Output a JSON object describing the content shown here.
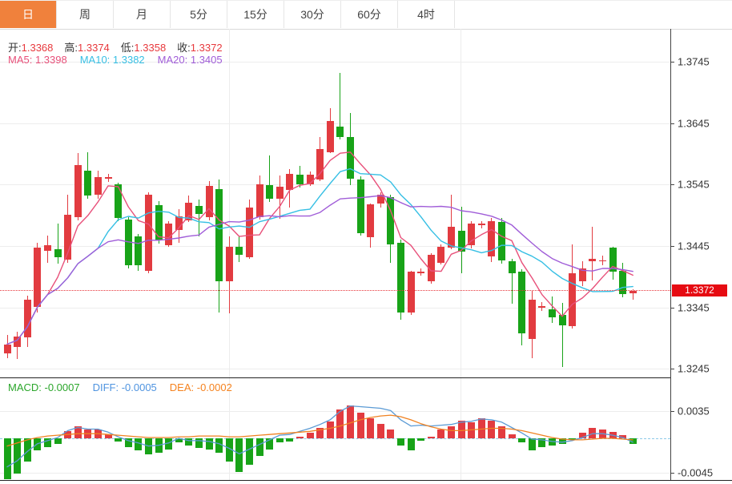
{
  "toolbar": {
    "tabs": [
      {
        "label": "日",
        "active": true
      },
      {
        "label": "周",
        "active": false
      },
      {
        "label": "月",
        "active": false
      },
      {
        "label": "5分",
        "active": false
      },
      {
        "label": "15分",
        "active": false
      },
      {
        "label": "30分",
        "active": false
      },
      {
        "label": "60分",
        "active": false
      },
      {
        "label": "4时",
        "active": false
      }
    ]
  },
  "ohlc": {
    "open_label": "开:",
    "open": "1.3368",
    "high_label": "高:",
    "high": "1.3374",
    "low_label": "低:",
    "low": "1.3358",
    "close_label": "收:",
    "close": "1.3372"
  },
  "ma": {
    "ma5": "MA5: 1.3398",
    "ma10": "MA10: 1.3382",
    "ma20": "MA20: 1.3405"
  },
  "macd_header": {
    "macd": "MACD: -0.0007",
    "diff": "DIFF: -0.0005",
    "dea": "DEA: -0.0002"
  },
  "price_axis": {
    "ticks": [
      "1.3745",
      "1.3645",
      "1.3545",
      "1.3445",
      "1.3345",
      "1.3245"
    ],
    "current": "1.3372"
  },
  "macd_axis": {
    "ticks": [
      "0.0035",
      "-0.0045"
    ]
  },
  "colors": {
    "up": "#e23b40",
    "down": "#18a318",
    "tab_active": "#f0813c",
    "ma5": "#e8507a",
    "ma10": "#36bfe4",
    "ma20": "#a05dd8",
    "diff_line": "#5b9bd5",
    "dea_line": "#f08222",
    "price_line": "#e8353a",
    "badge": "#e60b12"
  },
  "chart_data": {
    "type": "candlestick",
    "title": "日K线 (daily candlestick with MA5/MA10/MA20 and MACD)",
    "price_axis_ticks": [
      1.3745,
      1.3645,
      1.3545,
      1.3445,
      1.3345,
      1.3245
    ],
    "price_range": [
      1.3225,
      1.376
    ],
    "current_price": 1.3372,
    "macd_axis_ticks": [
      0.0035,
      -0.0045
    ],
    "legend": [
      "MA5",
      "MA10",
      "MA20",
      "MACD",
      "DIFF",
      "DEA"
    ],
    "grid": true,
    "candles_ohlc": [
      [
        1.327,
        1.33,
        1.3262,
        1.3285
      ],
      [
        1.3281,
        1.3305,
        1.3261,
        1.3298
      ],
      [
        1.3296,
        1.3364,
        1.3281,
        1.3357
      ],
      [
        1.3346,
        1.345,
        1.3337,
        1.3442
      ],
      [
        1.3437,
        1.3462,
        1.3418,
        1.3446
      ],
      [
        1.344,
        1.3481,
        1.3416,
        1.3427
      ],
      [
        1.3422,
        1.3529,
        1.3418,
        1.3496
      ],
      [
        1.3492,
        1.3596,
        1.3487,
        1.3577
      ],
      [
        1.3568,
        1.3598,
        1.3522,
        1.3527
      ],
      [
        1.3529,
        1.3568,
        1.3522,
        1.3557
      ],
      [
        1.3556,
        1.3563,
        1.3549,
        1.3557
      ],
      [
        1.3545,
        1.3548,
        1.3486,
        1.349
      ],
      [
        1.3488,
        1.3492,
        1.3408,
        1.3413
      ],
      [
        1.3461,
        1.3465,
        1.3405,
        1.3414
      ],
      [
        1.3405,
        1.3532,
        1.34,
        1.3529
      ],
      [
        1.3511,
        1.3518,
        1.3449,
        1.3454
      ],
      [
        1.3446,
        1.3486,
        1.3444,
        1.3481
      ],
      [
        1.3471,
        1.3505,
        1.345,
        1.3493
      ],
      [
        1.3487,
        1.3527,
        1.3484,
        1.3515
      ],
      [
        1.351,
        1.352,
        1.3461,
        1.3497
      ],
      [
        1.3492,
        1.3551,
        1.3486,
        1.3543
      ],
      [
        1.3537,
        1.3553,
        1.3337,
        1.3388
      ],
      [
        1.3388,
        1.3461,
        1.3335,
        1.3444
      ],
      [
        1.3443,
        1.3461,
        1.3419,
        1.343
      ],
      [
        1.3427,
        1.352,
        1.3424,
        1.3507
      ],
      [
        1.3492,
        1.356,
        1.3488,
        1.3546
      ],
      [
        1.3544,
        1.3592,
        1.3517,
        1.3522
      ],
      [
        1.3522,
        1.356,
        1.3489,
        1.3541
      ],
      [
        1.3536,
        1.357,
        1.3508,
        1.3563
      ],
      [
        1.3561,
        1.3575,
        1.354,
        1.3546
      ],
      [
        1.3546,
        1.3566,
        1.3543,
        1.3561
      ],
      [
        1.3553,
        1.3622,
        1.355,
        1.3603
      ],
      [
        1.3598,
        1.367,
        1.3596,
        1.3648
      ],
      [
        1.364,
        1.3727,
        1.3619,
        1.3622
      ],
      [
        1.3622,
        1.3661,
        1.3544,
        1.3555
      ],
      [
        1.3553,
        1.3558,
        1.3462,
        1.3466
      ],
      [
        1.3459,
        1.3514,
        1.3442,
        1.3513
      ],
      [
        1.3514,
        1.3533,
        1.3508,
        1.3529
      ],
      [
        1.3524,
        1.3528,
        1.3418,
        1.3448
      ],
      [
        1.345,
        1.3455,
        1.3325,
        1.3337
      ],
      [
        1.3337,
        1.3405,
        1.3333,
        1.3403
      ],
      [
        1.3401,
        1.3408,
        1.3396,
        1.3403
      ],
      [
        1.3387,
        1.3433,
        1.3384,
        1.3431
      ],
      [
        1.3418,
        1.3447,
        1.3415,
        1.3444
      ],
      [
        1.3442,
        1.3529,
        1.344,
        1.3476
      ],
      [
        1.347,
        1.3509,
        1.34,
        1.3435
      ],
      [
        1.3446,
        1.3485,
        1.3441,
        1.3481
      ],
      [
        1.348,
        1.3486,
        1.3474,
        1.3481
      ],
      [
        1.3428,
        1.3491,
        1.3418,
        1.3485
      ],
      [
        1.3484,
        1.3491,
        1.3416,
        1.3421
      ],
      [
        1.342,
        1.3424,
        1.3351,
        1.34
      ],
      [
        1.3403,
        1.3407,
        1.3283,
        1.3302
      ],
      [
        1.3294,
        1.3372,
        1.3262,
        1.3358
      ],
      [
        1.3346,
        1.3353,
        1.3339,
        1.3347
      ],
      [
        1.3342,
        1.3363,
        1.332,
        1.3329
      ],
      [
        1.3333,
        1.3352,
        1.3248,
        1.3316
      ],
      [
        1.3314,
        1.3447,
        1.331,
        1.34
      ],
      [
        1.3387,
        1.342,
        1.338,
        1.3409
      ],
      [
        1.342,
        1.3476,
        1.3389,
        1.3424
      ],
      [
        1.3421,
        1.3429,
        1.3413,
        1.3422
      ],
      [
        1.3442,
        1.3444,
        1.339,
        1.3403
      ],
      [
        1.3405,
        1.3418,
        1.3361,
        1.3366
      ],
      [
        1.3368,
        1.3374,
        1.3358,
        1.3372
      ]
    ],
    "macd_hist": [
      -0.0053,
      -0.0046,
      -0.003,
      -0.0016,
      -0.0011,
      -0.0007,
      0.0009,
      0.0016,
      0.0012,
      0.0011,
      0.0005,
      -0.0004,
      -0.0011,
      -0.0016,
      -0.0021,
      -0.0019,
      -0.0014,
      -0.0005,
      -0.0009,
      -0.0012,
      -0.0014,
      -0.0019,
      -0.003,
      -0.0044,
      -0.0034,
      -0.0023,
      -0.0014,
      -0.0005,
      -0.0004,
      0.0002,
      0.0007,
      0.0014,
      0.0022,
      0.0037,
      0.0043,
      0.0033,
      0.0026,
      0.0019,
      0.0012,
      -0.0009,
      -0.0016,
      -0.0003,
      0.0002,
      0.0011,
      0.0016,
      0.0023,
      0.0021,
      0.0026,
      0.0023,
      0.0016,
      0.0005,
      -0.0005,
      -0.0016,
      -0.0011,
      -0.0009,
      -0.0007,
      -0.0002,
      0.0007,
      0.0014,
      0.0012,
      0.0008,
      0.0004,
      -0.0007
    ],
    "diff_series": [
      -0.0037,
      -0.0029,
      -0.0017,
      -0.0007,
      -0.0003,
      0.0001,
      0.001,
      0.0014,
      0.0012,
      0.0012,
      0.0008,
      0.0002,
      -0.0003,
      -0.0006,
      -0.001,
      -0.0009,
      -0.0006,
      0.0,
      -0.0003,
      -0.0003,
      -0.0004,
      -0.0007,
      -0.0013,
      -0.002,
      -0.0014,
      -0.0008,
      -0.0002,
      0.0004,
      0.0005,
      0.0009,
      0.0013,
      0.0018,
      0.0024,
      0.0035,
      0.0042,
      0.0041,
      0.004,
      0.0039,
      0.0036,
      0.0024,
      0.0016,
      0.0017,
      0.0016,
      0.0017,
      0.0018,
      0.0021,
      0.0022,
      0.0025,
      0.0024,
      0.0021,
      0.0014,
      0.0007,
      -0.0001,
      -0.0002,
      -0.0004,
      -0.0005,
      -0.0003,
      0.0001,
      0.0006,
      0.0006,
      0.0004,
      0.0001,
      -0.0005
    ],
    "dea_series": [
      -0.001,
      -0.0006,
      -0.0002,
      0.0001,
      0.0003,
      0.0004,
      0.0005,
      0.0006,
      0.0006,
      0.0006,
      0.0005,
      0.0004,
      0.0003,
      0.0002,
      0.0001,
      0.0001,
      0.0001,
      0.0002,
      0.0002,
      0.0003,
      0.0003,
      0.0003,
      0.0002,
      0.0002,
      0.0003,
      0.0004,
      0.0005,
      0.0006,
      0.0007,
      0.0008,
      0.0009,
      0.0011,
      0.0013,
      0.0016,
      0.002,
      0.0024,
      0.0027,
      0.0029,
      0.003,
      0.0028,
      0.0024,
      0.0019,
      0.0015,
      0.0012,
      0.001,
      0.001,
      0.0011,
      0.0012,
      0.0013,
      0.0013,
      0.0012,
      0.001,
      0.0007,
      0.0004,
      0.0001,
      -0.0001,
      -0.0002,
      -0.0002,
      -0.0001,
      0.0,
      0.0,
      -0.0001,
      -0.0002
    ]
  }
}
